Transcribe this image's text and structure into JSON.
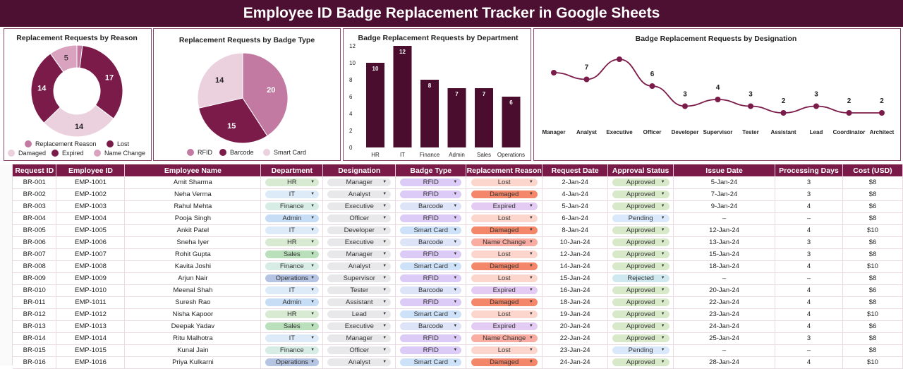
{
  "title": "Employee ID Badge Replacement Tracker in Google Sheets",
  "colors": {
    "dark": "#4d1033",
    "header": "#7a1a48",
    "bar": "#4a0d2e",
    "maroon": "#7b1b4a",
    "mid": "#c27aa2",
    "light": "#ebd0dd"
  },
  "chart_data": [
    {
      "type": "pie",
      "variant": "donut",
      "title": "Replacement Requests by Reason",
      "labels": [
        "Replacement Reason",
        "Lost",
        "Damaged",
        "Expired",
        "Name Change"
      ],
      "values": [
        1,
        17,
        14,
        14,
        5
      ],
      "colors": [
        "#c27aa2",
        "#7b1b4a",
        "#ebd0dd",
        "#7b1b4a",
        "#d9a3bf"
      ],
      "legend": "bottom"
    },
    {
      "type": "pie",
      "title": "Replacement Requests by Badge Type",
      "labels": [
        "RFID",
        "Barcode",
        "Smart Card"
      ],
      "values": [
        20,
        15,
        14
      ],
      "colors": [
        "#c27aa2",
        "#7b1b4a",
        "#ebd0dd"
      ],
      "legend": "bottom"
    },
    {
      "type": "bar",
      "title": "Badge Replacement Requests by Department",
      "categories": [
        "HR",
        "IT",
        "Finance",
        "Admin",
        "Sales",
        "Operations"
      ],
      "values": [
        10,
        12,
        8,
        7,
        7,
        6
      ],
      "ylim": [
        0,
        12
      ],
      "yticks": [
        0,
        2,
        4,
        6,
        8,
        10,
        12
      ]
    },
    {
      "type": "line",
      "title": "Badge Replacement Requests by Designation",
      "categories": [
        "Manager",
        "Analyst",
        "Executive",
        "Officer",
        "Developer",
        "Supervisor",
        "Tester",
        "Assistant",
        "Lead",
        "Coordinator",
        "Architect"
      ],
      "values": [
        8,
        7,
        10,
        6,
        3,
        4,
        3,
        2,
        3,
        2,
        2
      ]
    }
  ],
  "table": {
    "headers": [
      "Request ID",
      "Employee ID",
      "Employee Name",
      "Department",
      "Designation",
      "Badge Type",
      "Replacement Reason",
      "Request Date",
      "Approval Status",
      "Issue Date",
      "Processing Days",
      "Cost (USD)"
    ],
    "rows": [
      [
        "BR-001",
        "EMP-1001",
        "Amit Sharma",
        "HR",
        "Manager",
        "RFID",
        "Lost",
        "2-Jan-24",
        "Approved",
        "5-Jan-24",
        "3",
        "$8"
      ],
      [
        "BR-002",
        "EMP-1002",
        "Neha Verma",
        "IT",
        "Analyst",
        "RFID",
        "Damaged",
        "4-Jan-24",
        "Approved",
        "7-Jan-24",
        "3",
        "$8"
      ],
      [
        "BR-003",
        "EMP-1003",
        "Rahul Mehta",
        "Finance",
        "Executive",
        "Barcode",
        "Expired",
        "5-Jan-24",
        "Approved",
        "9-Jan-24",
        "4",
        "$6"
      ],
      [
        "BR-004",
        "EMP-1004",
        "Pooja Singh",
        "Admin",
        "Officer",
        "RFID",
        "Lost",
        "6-Jan-24",
        "Pending",
        "–",
        "–",
        "$8"
      ],
      [
        "BR-005",
        "EMP-1005",
        "Ankit Patel",
        "IT",
        "Developer",
        "Smart Card",
        "Damaged",
        "8-Jan-24",
        "Approved",
        "12-Jan-24",
        "4",
        "$10"
      ],
      [
        "BR-006",
        "EMP-1006",
        "Sneha Iyer",
        "HR",
        "Executive",
        "Barcode",
        "Name Change",
        "10-Jan-24",
        "Approved",
        "13-Jan-24",
        "3",
        "$6"
      ],
      [
        "BR-007",
        "EMP-1007",
        "Rohit Gupta",
        "Sales",
        "Manager",
        "RFID",
        "Lost",
        "12-Jan-24",
        "Approved",
        "15-Jan-24",
        "3",
        "$8"
      ],
      [
        "BR-008",
        "EMP-1008",
        "Kavita Joshi",
        "Finance",
        "Analyst",
        "Smart Card",
        "Damaged",
        "14-Jan-24",
        "Approved",
        "18-Jan-24",
        "4",
        "$10"
      ],
      [
        "BR-009",
        "EMP-1009",
        "Arjun Nair",
        "Operations",
        "Supervisor",
        "RFID",
        "Lost",
        "15-Jan-24",
        "Rejected",
        "–",
        "–",
        "$8"
      ],
      [
        "BR-010",
        "EMP-1010",
        "Meenal Shah",
        "IT",
        "Tester",
        "Barcode",
        "Expired",
        "16-Jan-24",
        "Approved",
        "20-Jan-24",
        "4",
        "$6"
      ],
      [
        "BR-011",
        "EMP-1011",
        "Suresh Rao",
        "Admin",
        "Assistant",
        "RFID",
        "Damaged",
        "18-Jan-24",
        "Approved",
        "22-Jan-24",
        "4",
        "$8"
      ],
      [
        "BR-012",
        "EMP-1012",
        "Nisha Kapoor",
        "HR",
        "Lead",
        "Smart Card",
        "Lost",
        "19-Jan-24",
        "Approved",
        "23-Jan-24",
        "4",
        "$10"
      ],
      [
        "BR-013",
        "EMP-1013",
        "Deepak Yadav",
        "Sales",
        "Executive",
        "Barcode",
        "Expired",
        "20-Jan-24",
        "Approved",
        "24-Jan-24",
        "4",
        "$6"
      ],
      [
        "BR-014",
        "EMP-1014",
        "Ritu Malhotra",
        "IT",
        "Manager",
        "RFID",
        "Name Change",
        "22-Jan-24",
        "Approved",
        "25-Jan-24",
        "3",
        "$8"
      ],
      [
        "BR-015",
        "EMP-1015",
        "Kunal Jain",
        "Finance",
        "Officer",
        "RFID",
        "Lost",
        "23-Jan-24",
        "Pending",
        "–",
        "–",
        "$8"
      ],
      [
        "BR-016",
        "EMP-1016",
        "Priya Kulkarni",
        "Operations",
        "Analyst",
        "Smart Card",
        "Damaged",
        "24-Jan-24",
        "Approved",
        "28-Jan-24",
        "4",
        "$10"
      ]
    ]
  },
  "pill_colors": {
    "HR": "#d9ead3",
    "IT": "#ddebf9",
    "Finance": "#d6ece4",
    "Admin": "#c7ddf6",
    "Sales": "#b9e0bb",
    "Operations": "#b5c4e2",
    "RFID": "#dccbf6",
    "Barcode": "#dde4f8",
    "Smart Card": "#cde2f8",
    "Lost": "#fcd6cd",
    "Damaged": "#f4876a",
    "Expired": "#e3cbf4",
    "Name Change": "#f8aca2",
    "Approved": "#d8e9ca",
    "Pending": "#d9e8fb",
    "Rejected": "#cfe8ef",
    "designation": "#e8e8ea"
  }
}
